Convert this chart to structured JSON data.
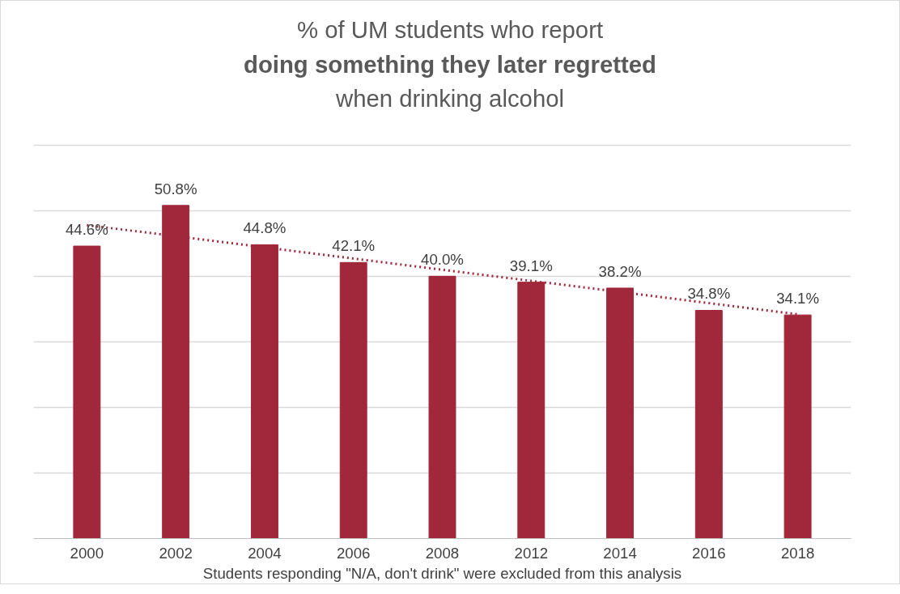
{
  "chart_data": {
    "type": "bar",
    "title": "% of UM students who report\ndoing something they later regretted\nwhen drinking alcohol",
    "xlabel": "Students responding \"N/A, don't drink\" were excluded from this analysis",
    "categories": [
      "2000",
      "2002",
      "2004",
      "2006",
      "2008",
      "2012",
      "2014",
      "2016",
      "2018"
    ],
    "series": [
      {
        "color": "#a0283a",
        "values": [
          44.6,
          50.8,
          44.8,
          42.1,
          40.0,
          39.1,
          38.2,
          34.8,
          34.1
        ],
        "value_labels": [
          "44.6%",
          "50.8%",
          "44.8%",
          "42.1%",
          "40.0%",
          "39.1%",
          "38.2%",
          "34.8%",
          "34.1%"
        ]
      },
      {
        "type": "line",
        "color": "#a0283a",
        "line_style": "dotted",
        "values": [
          47.8,
          null,
          null,
          null,
          null,
          null,
          null,
          null,
          34.2
        ]
      }
    ],
    "tick_labels": "x",
    "grid": "y"
  }
}
